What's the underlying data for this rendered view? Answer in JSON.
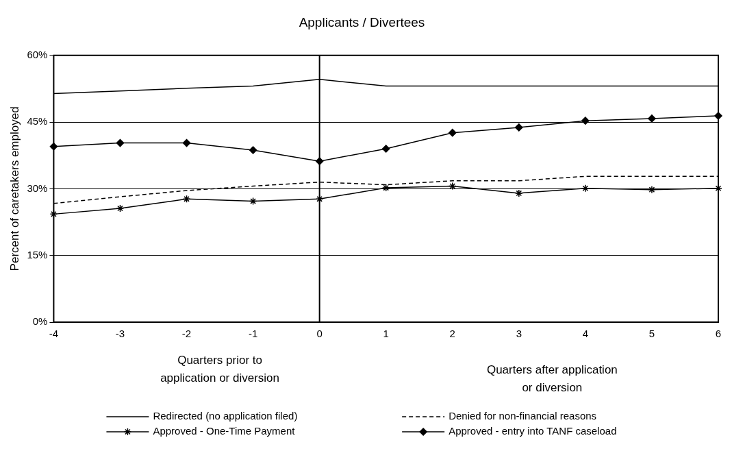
{
  "chart_data": {
    "type": "line",
    "title": "Applicants / Divertees",
    "ylabel": "Percent of caretakers employed",
    "x": [
      -4,
      -3,
      -2,
      -1,
      0,
      1,
      2,
      3,
      4,
      5,
      6
    ],
    "xlim": [
      -4,
      6
    ],
    "xticks": [
      -4,
      -3,
      -2,
      -1,
      0,
      1,
      2,
      3,
      4,
      5,
      6
    ],
    "ylim": [
      0,
      60
    ],
    "yticks": [
      {
        "value": 0,
        "label": "0%"
      },
      {
        "value": 15,
        "label": "15%"
      },
      {
        "value": 30,
        "label": "30%"
      },
      {
        "value": 45,
        "label": "45%"
      },
      {
        "value": 60,
        "label": "60%"
      }
    ],
    "grid": "y",
    "legend": "bottom",
    "ref_lines": [
      {
        "axis": "x",
        "value": 0,
        "color": "#000000"
      }
    ],
    "annotations": [
      "Quarters prior to application or diversion",
      "Quarters after application or diversion"
    ],
    "series": [
      {
        "name": "Redirected (no application filed)",
        "color": "#000000",
        "marker": "none",
        "line_style": "solid",
        "values": [
          51.4,
          52,
          52.6,
          53.1,
          54.6,
          53.1,
          53.1,
          53.1,
          53.1,
          53.1,
          53.1
        ]
      },
      {
        "name": "Denied for non-financial reasons",
        "color": "#000000",
        "marker": "none",
        "line_style": "dashed",
        "values": [
          26.7,
          28.2,
          29.6,
          30.6,
          31.5,
          30.9,
          31.8,
          31.8,
          32.8,
          32.8,
          32.8
        ]
      },
      {
        "name": "Approved - One-Time Payment",
        "color": "#000000",
        "marker": "cross",
        "line_style": "solid",
        "values": [
          24.3,
          25.6,
          27.7,
          27.2,
          27.7,
          30.2,
          30.6,
          29,
          30.1,
          29.8,
          30.1
        ]
      },
      {
        "name": "Approved - entry into TANF caseload",
        "color": "#000000",
        "marker": "diamond",
        "line_style": "solid",
        "values": [
          39.5,
          40.3,
          40.3,
          38.7,
          36.2,
          39,
          42.6,
          43.8,
          45.3,
          45.8,
          46.4
        ]
      }
    ]
  }
}
